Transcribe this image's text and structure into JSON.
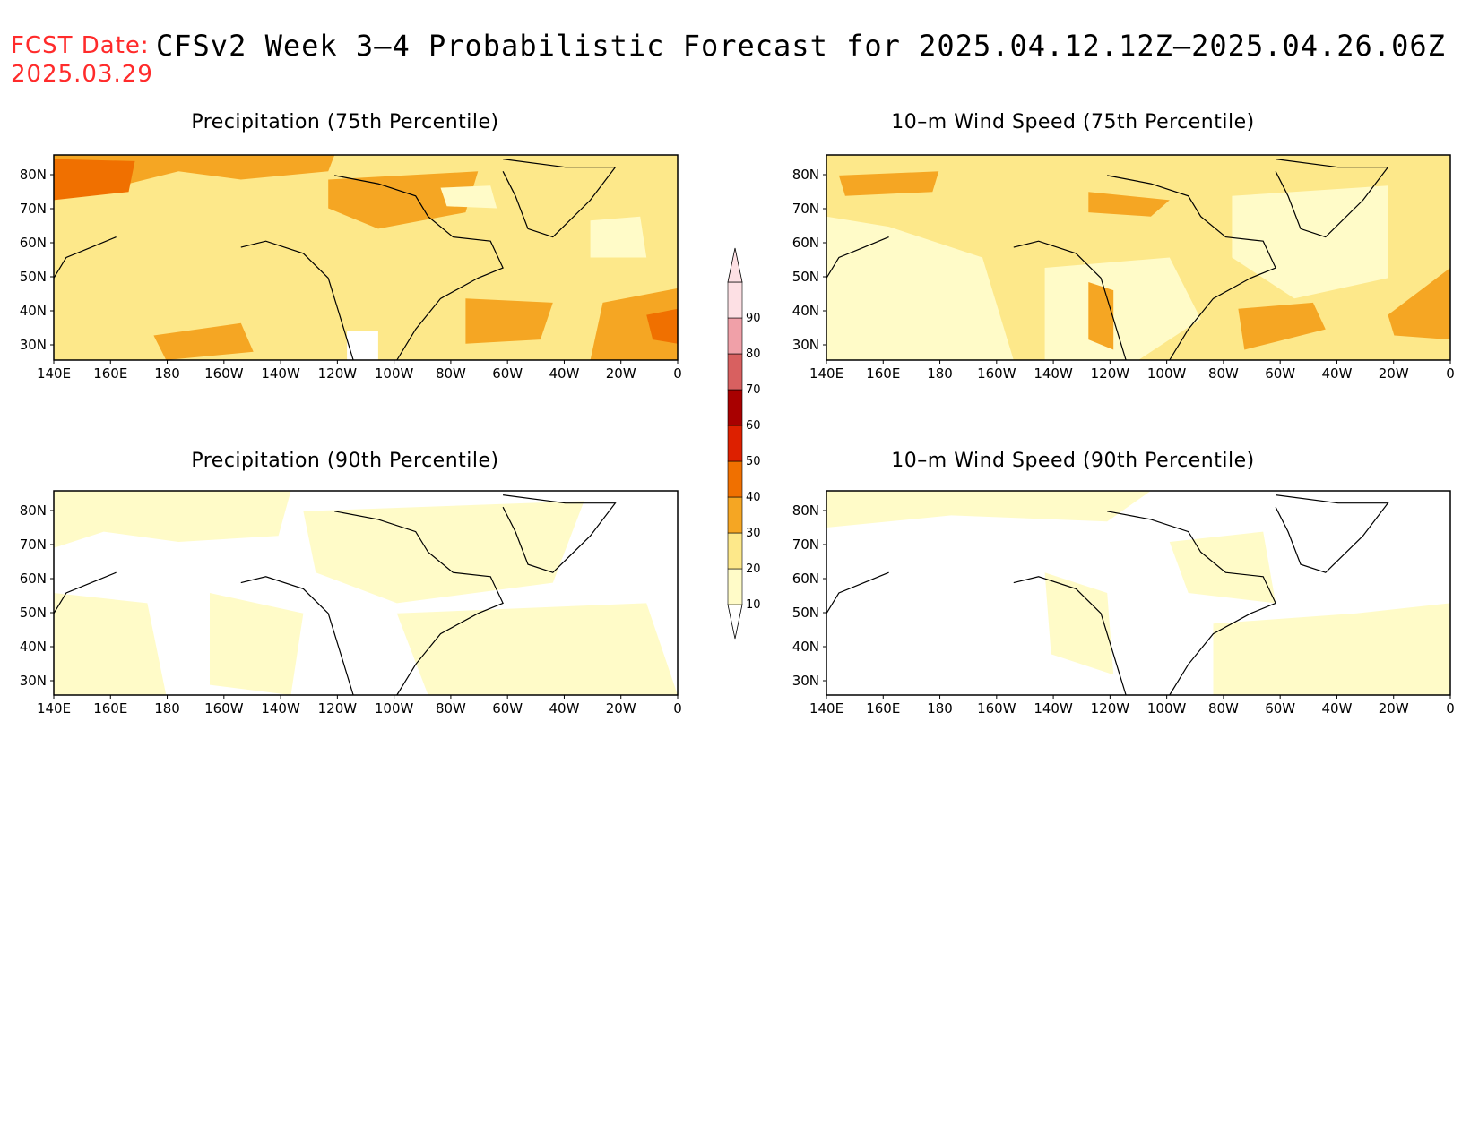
{
  "header": {
    "fcst_label": "FCST Date:",
    "fcst_date": "2025.03.29",
    "title": "CFSv2 Week 3–4 Probabilistic Forecast for 2025.04.12.12Z–2025.04.26.06Z"
  },
  "panels": [
    {
      "id": "precip75",
      "title": "Precipitation (75th Percentile)"
    },
    {
      "id": "wind75",
      "title": "10–m Wind Speed (75th Percentile)"
    },
    {
      "id": "precip90",
      "title": "Precipitation (90th Percentile)"
    },
    {
      "id": "wind90",
      "title": "10–m Wind Speed (90th Percentile)"
    }
  ],
  "axes": {
    "lat_labels": [
      "80N",
      "70N",
      "60N",
      "50N",
      "40N",
      "30N"
    ],
    "lon_labels": [
      "140E",
      "160E",
      "180",
      "160W",
      "140W",
      "120W",
      "100W",
      "80W",
      "60W",
      "40W",
      "20W",
      "0"
    ]
  },
  "colorbar": {
    "levels": [
      "10",
      "20",
      "30",
      "40",
      "50",
      "60",
      "70",
      "80",
      "90"
    ],
    "colors": [
      "#fffbc8",
      "#fde88a",
      "#f5a623",
      "#f07000",
      "#dd2000",
      "#a80000",
      "#d86060",
      "#f0a0a8",
      "#fde0e4"
    ]
  }
}
